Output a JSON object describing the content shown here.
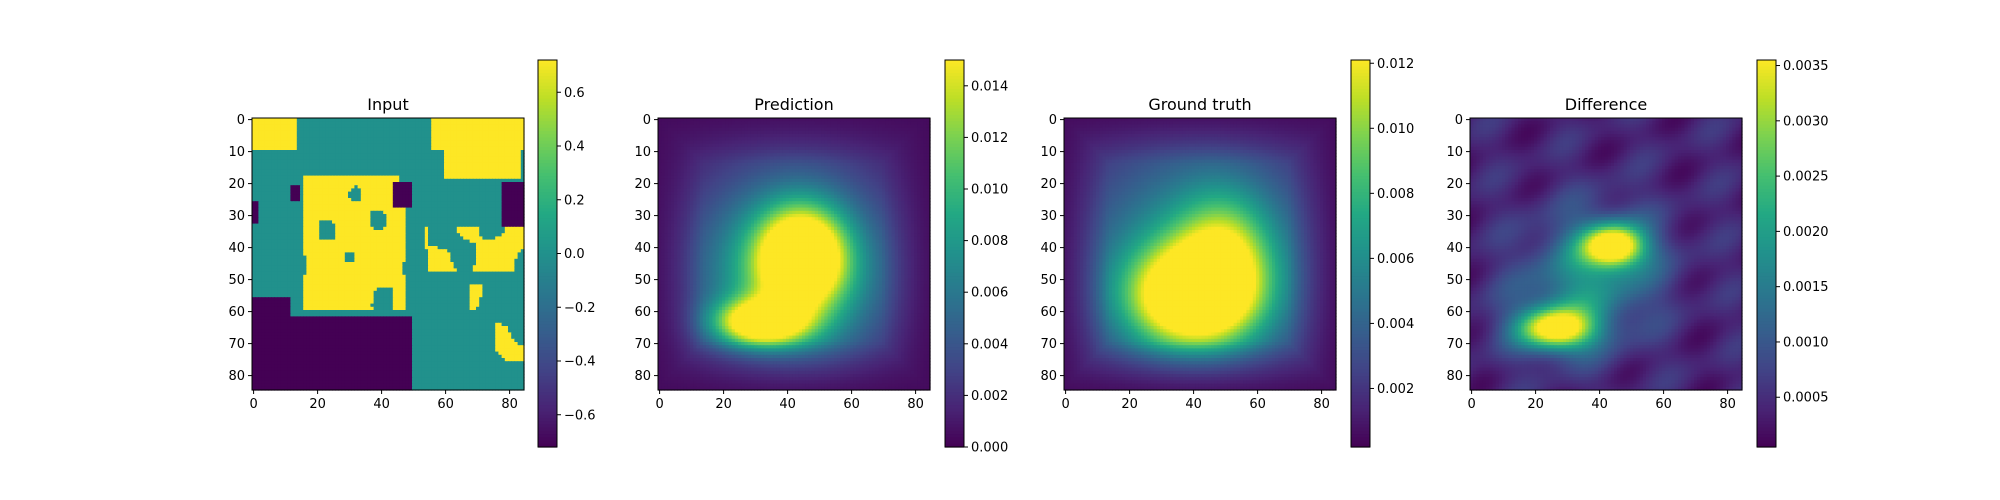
{
  "chart_data": [
    {
      "type": "heatmap",
      "title": "Input",
      "x_ticks": [
        0,
        20,
        40,
        60,
        80
      ],
      "y_ticks": [
        0,
        10,
        20,
        30,
        40,
        50,
        60,
        70,
        80
      ],
      "grid_size": 85,
      "grid": false,
      "colormap": "viridis",
      "colorbar": {
        "range": [
          -0.72,
          0.72
        ],
        "ticks": [
          -0.6,
          -0.4,
          -0.2,
          0.0,
          0.2,
          0.4,
          0.6
        ],
        "tick_labels": [
          "−0.6",
          "−0.4",
          "−0.2",
          "0.0",
          "0.2",
          "0.4",
          "0.6"
        ]
      },
      "description_values": "three discrete levels: -0.7 (dark), 0.0 (teal), 0.7 (yellow)"
    },
    {
      "type": "heatmap",
      "title": "Prediction",
      "x_ticks": [
        0,
        20,
        40,
        60,
        80
      ],
      "y_ticks": [
        0,
        10,
        20,
        30,
        40,
        50,
        60,
        70,
        80
      ],
      "grid_size": 85,
      "grid": false,
      "colormap": "viridis",
      "colorbar": {
        "range": [
          0,
          0.015
        ],
        "ticks": [
          0.0,
          0.002,
          0.004,
          0.006,
          0.008,
          0.01,
          0.012,
          0.014
        ],
        "tick_labels": [
          "0.000",
          "0.002",
          "0.004",
          "0.006",
          "0.008",
          "0.010",
          "0.012",
          "0.014"
        ]
      },
      "peaks": [
        {
          "x": 45,
          "y": 43,
          "value": 0.0145
        },
        {
          "x": 32,
          "y": 64,
          "value": 0.0145
        }
      ]
    },
    {
      "type": "heatmap",
      "title": "Ground truth",
      "x_ticks": [
        0,
        20,
        40,
        60,
        80
      ],
      "y_ticks": [
        0,
        10,
        20,
        30,
        40,
        50,
        60,
        70,
        80
      ],
      "grid_size": 85,
      "grid": false,
      "colormap": "viridis",
      "colorbar": {
        "range": [
          0.0002,
          0.0121
        ],
        "ticks": [
          0.002,
          0.004,
          0.006,
          0.008,
          0.01,
          0.012
        ],
        "tick_labels": [
          "0.002",
          "0.004",
          "0.006",
          "0.008",
          "0.010",
          "0.012"
        ]
      },
      "peaks": [
        {
          "x": 40,
          "y": 55,
          "value": 0.0119
        }
      ]
    },
    {
      "type": "heatmap",
      "title": "Difference",
      "x_ticks": [
        0,
        20,
        40,
        60,
        80
      ],
      "y_ticks": [
        0,
        10,
        20,
        30,
        40,
        50,
        60,
        70,
        80
      ],
      "grid_size": 85,
      "grid": false,
      "colormap": "viridis",
      "colorbar": {
        "range": [
          5e-05,
          0.00355
        ],
        "ticks": [
          0.0005,
          0.001,
          0.0015,
          0.002,
          0.0025,
          0.003,
          0.0035
        ],
        "tick_labels": [
          "0.0005",
          "0.0010",
          "0.0015",
          "0.0020",
          "0.0025",
          "0.0030",
          "0.0035"
        ]
      },
      "peaks": [
        {
          "x": 45,
          "y": 40,
          "value": 0.0034
        },
        {
          "x": 27,
          "y": 66,
          "value": 0.0033
        }
      ]
    }
  ]
}
